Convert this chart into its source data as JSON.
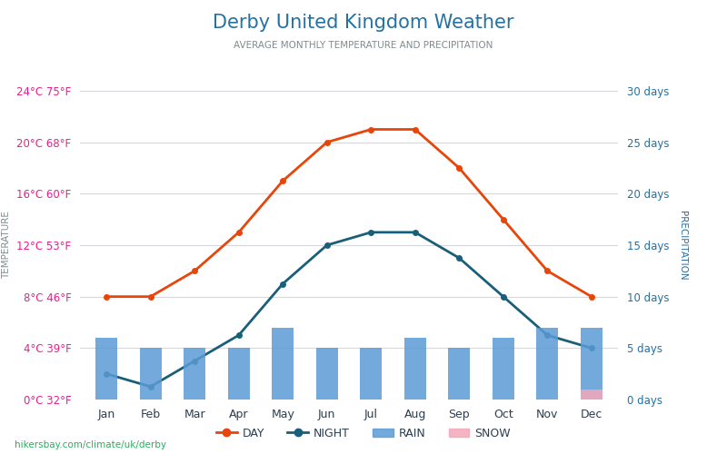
{
  "title": "Derby United Kingdom Weather",
  "subtitle": "AVERAGE MONTHLY TEMPERATURE AND PRECIPITATION",
  "months": [
    "Jan",
    "Feb",
    "Mar",
    "Apr",
    "May",
    "Jun",
    "Jul",
    "Aug",
    "Sep",
    "Oct",
    "Nov",
    "Dec"
  ],
  "day_temp": [
    8,
    8,
    10,
    13,
    17,
    20,
    21,
    21,
    18,
    14,
    10,
    8
  ],
  "night_temp": [
    2,
    1,
    3,
    5,
    9,
    12,
    13,
    13,
    11,
    8,
    5,
    4
  ],
  "rain_days": [
    6,
    5,
    5,
    5,
    7,
    5,
    5,
    6,
    5,
    6,
    7,
    7
  ],
  "snow_days": [
    0,
    0,
    0,
    0,
    0,
    0,
    0,
    0,
    0,
    0,
    0,
    1
  ],
  "temp_ylim": [
    0,
    24
  ],
  "temp_yticks": [
    0,
    4,
    8,
    12,
    16,
    20,
    24
  ],
  "temp_yticklabels": [
    "0°C 32°F",
    "4°C 39°F",
    "8°C 46°F",
    "12°C 53°F",
    "16°C 60°F",
    "20°C 68°F",
    "24°C 75°F"
  ],
  "precip_ylim": [
    0,
    30
  ],
  "precip_yticks": [
    0,
    5,
    10,
    15,
    20,
    25,
    30
  ],
  "precip_yticklabels": [
    "0 days",
    "5 days",
    "10 days",
    "15 days",
    "20 days",
    "25 days",
    "30 days"
  ],
  "day_color": "#e8450a",
  "night_color": "#1a5f7a",
  "rain_color": "#5b9bd5",
  "snow_color": "#f4a7b9",
  "title_color": "#2471a3",
  "subtitle_color": "#7f8c8d",
  "left_tick_color": "#e91e8c",
  "right_tick_color": "#2471a3",
  "left_label_color": "#7f8c8d",
  "right_label_color": "#2471a3",
  "background_color": "#ffffff",
  "grid_color": "#d5d8dc",
  "watermark": "hikersbay.com/climate/uk/derby",
  "watermark_color": "#27ae60"
}
